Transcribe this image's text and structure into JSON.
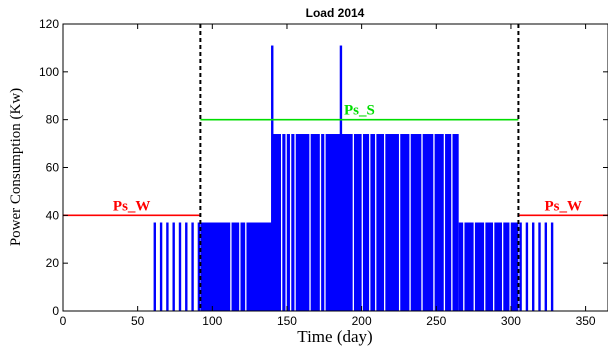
{
  "chart_data": {
    "type": "bar",
    "title": "Load 2014",
    "xlabel": "Time (day)",
    "ylabel": "Power Consumption (Kw)",
    "xlim": [
      0,
      365
    ],
    "ylim": [
      0,
      120
    ],
    "xticks": [
      0,
      50,
      100,
      150,
      200,
      250,
      300,
      350
    ],
    "yticks": [
      0,
      20,
      40,
      60,
      80,
      100,
      120
    ],
    "grid": false,
    "series_color": "#0000ff",
    "segments": [
      {
        "from": 0,
        "to": 60,
        "value": 0
      },
      {
        "from": 60,
        "to": 92,
        "value": 37,
        "pattern": "intermittent"
      },
      {
        "from": 92,
        "to": 140,
        "value": 37
      },
      {
        "from": 140,
        "to": 265,
        "value": 74
      },
      {
        "from": 265,
        "to": 305,
        "value": 37
      },
      {
        "from": 305,
        "to": 330,
        "value": 37,
        "pattern": "intermittent"
      },
      {
        "from": 330,
        "to": 365,
        "value": 0
      }
    ],
    "spikes": [
      {
        "x": 140,
        "value": 111
      },
      {
        "x": 186,
        "value": 111
      }
    ],
    "vertical_lines": [
      {
        "x": 92,
        "style": "dashed",
        "color": "#000000"
      },
      {
        "x": 305,
        "style": "dashed",
        "color": "#000000"
      }
    ],
    "thresholds": [
      {
        "label": "Ps_W",
        "value": 40,
        "from": 0,
        "to": 92,
        "color": "#ff0000"
      },
      {
        "label": "Ps_S",
        "value": 80,
        "from": 92,
        "to": 305,
        "color": "#00dd00"
      },
      {
        "label": "Ps_W",
        "value": 40,
        "from": 305,
        "to": 365,
        "color": "#ff0000"
      }
    ]
  }
}
